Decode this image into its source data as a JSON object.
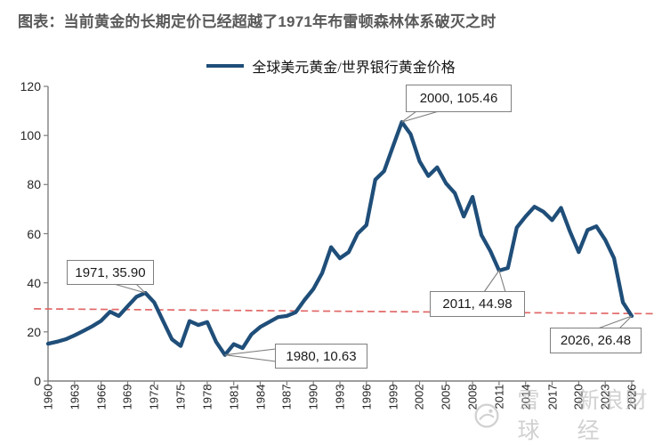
{
  "title": "图表：当前黄金的长期定价已经超越了1971年布雷顿森林体系破灭之时",
  "legend": {
    "label": "全球美元黄金/世界银行黄金价格"
  },
  "watermark": {
    "brand1": "雪球",
    "brand2": "新浪财经"
  },
  "colors": {
    "line": "#1F4E79",
    "trend": "#E26868",
    "axis": "#7F7F7F",
    "title": "#595959",
    "callout_border": "#7F7F7F",
    "text": "#262626",
    "watermark": "#B5B5B5"
  },
  "chart_data": {
    "type": "line",
    "title": "当前黄金的长期定价已经超越了1971年布雷顿森林体系破灭之时",
    "xlabel": "",
    "ylabel": "",
    "xlim": [
      1960,
      2026
    ],
    "ylim": [
      0,
      120
    ],
    "grid": false,
    "legend_position": "top",
    "x_ticks": [
      1960,
      1963,
      1966,
      1969,
      1972,
      1975,
      1978,
      1981,
      1984,
      1987,
      1990,
      1993,
      1996,
      1999,
      2002,
      2005,
      2008,
      2011,
      2014,
      2017,
      2020,
      2023,
      2026
    ],
    "y_ticks": [
      0,
      20,
      40,
      60,
      80,
      100,
      120
    ],
    "x": [
      1960,
      1961,
      1962,
      1963,
      1964,
      1965,
      1966,
      1967,
      1968,
      1969,
      1970,
      1971,
      1972,
      1973,
      1974,
      1975,
      1976,
      1977,
      1978,
      1979,
      1980,
      1981,
      1982,
      1983,
      1984,
      1985,
      1986,
      1987,
      1988,
      1989,
      1990,
      1991,
      1992,
      1993,
      1994,
      1995,
      1996,
      1997,
      1998,
      1999,
      2000,
      2001,
      2002,
      2003,
      2004,
      2005,
      2006,
      2007,
      2008,
      2009,
      2010,
      2011,
      2012,
      2013,
      2014,
      2015,
      2016,
      2017,
      2018,
      2019,
      2020,
      2021,
      2022,
      2023,
      2024,
      2025,
      2026
    ],
    "series": [
      {
        "name": "全球美元黄金/世界银行黄金价格",
        "values": [
          15.2,
          16.0,
          17.0,
          18.6,
          20.4,
          22.3,
          24.5,
          28.2,
          26.5,
          30.5,
          34.3,
          35.9,
          32.0,
          24.5,
          17.0,
          14.3,
          24.4,
          22.8,
          24.0,
          16.0,
          10.63,
          15.0,
          13.4,
          19.0,
          22.0,
          24.0,
          26.0,
          26.5,
          28.0,
          33.0,
          37.5,
          44.0,
          54.5,
          50.0,
          52.5,
          60.0,
          63.5,
          82.0,
          85.5,
          95.5,
          105.46,
          100.5,
          89.5,
          83.5,
          87.0,
          80.5,
          76.5,
          67.0,
          75.0,
          59.5,
          53.0,
          44.98,
          46.0,
          62.5,
          67.0,
          71.0,
          69.0,
          65.5,
          70.5,
          61.0,
          52.5,
          61.5,
          63.0,
          57.5,
          50.0,
          32.0,
          26.48
        ]
      }
    ],
    "trend_line": {
      "style": "dashed",
      "points": [
        {
          "x": 1958.4,
          "y": 29.4
        },
        {
          "x": 2028.4,
          "y": 27.4
        }
      ]
    },
    "annotations": [
      {
        "x": 1971,
        "y": 35.9,
        "label": "1971, 35.90"
      },
      {
        "x": 1980,
        "y": 10.63,
        "label": "1980, 10.63"
      },
      {
        "x": 2000,
        "y": 105.46,
        "label": "2000, 105.46"
      },
      {
        "x": 2011,
        "y": 44.98,
        "label": "2011, 44.98"
      },
      {
        "x": 2026,
        "y": 26.48,
        "label": "2026, 26.48"
      }
    ]
  }
}
